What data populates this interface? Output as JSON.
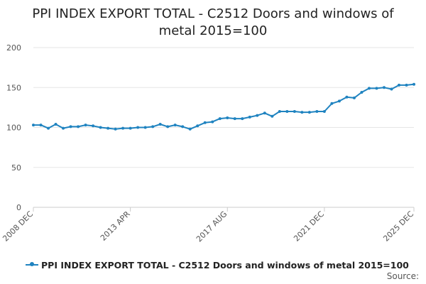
{
  "title_lines": [
    "PPI INDEX EXPORT TOTAL - C2512 Doors and windows of",
    "metal 2015=100"
  ],
  "source_label": "Source:",
  "colors": {
    "series": "#1f83c0",
    "grid": "#e6e6e6",
    "axis": "#cccccc"
  },
  "chart_data": {
    "type": "line",
    "title": "PPI INDEX EXPORT TOTAL - C2512 Doors and windows of metal 2015=100",
    "xlabel": "",
    "ylabel": "",
    "ylim": [
      0,
      200
    ],
    "y_ticks": [
      0,
      50,
      100,
      150,
      200
    ],
    "x_range": [
      "2008 DEC",
      "2025 DEC"
    ],
    "x_tick_labels": [
      "2008 DEC",
      "2013 APR",
      "2017 AUG",
      "2021 DEC",
      "2025 DEC"
    ],
    "grid": true,
    "legend_position": "bottom",
    "series": [
      {
        "name": "PPI INDEX EXPORT TOTAL - C2512 Doors and windows of metal 2015=100",
        "x": [
          "2008 DEC",
          "2009 APR",
          "2009 AUG",
          "2009 DEC",
          "2010 APR",
          "2010 AUG",
          "2010 DEC",
          "2011 APR",
          "2011 AUG",
          "2011 DEC",
          "2012 APR",
          "2012 AUG",
          "2012 DEC",
          "2013 APR",
          "2013 AUG",
          "2013 DEC",
          "2014 APR",
          "2014 AUG",
          "2014 DEC",
          "2015 APR",
          "2015 AUG",
          "2015 DEC",
          "2016 APR",
          "2016 AUG",
          "2016 DEC",
          "2017 APR",
          "2017 AUG",
          "2017 DEC",
          "2018 APR",
          "2018 AUG",
          "2018 DEC",
          "2019 APR",
          "2019 AUG",
          "2019 DEC",
          "2020 APR",
          "2020 AUG",
          "2020 DEC",
          "2021 APR",
          "2021 AUG",
          "2021 DEC",
          "2022 APR",
          "2022 AUG",
          "2022 DEC",
          "2023 APR",
          "2023 AUG",
          "2023 DEC",
          "2024 APR",
          "2024 AUG",
          "2024 DEC",
          "2025 APR",
          "2025 AUG",
          "2025 DEC"
        ],
        "values": [
          103,
          103,
          99,
          104,
          99,
          101,
          101,
          103,
          102,
          100,
          99,
          98,
          99,
          99,
          100,
          100,
          101,
          104,
          101,
          103,
          101,
          98,
          102,
          106,
          107,
          111,
          112,
          111,
          111,
          113,
          115,
          118,
          114,
          120,
          120,
          120,
          119,
          119,
          120,
          120,
          130,
          133,
          138,
          137,
          144,
          149,
          149,
          150,
          148,
          153,
          153,
          154
        ]
      }
    ]
  }
}
